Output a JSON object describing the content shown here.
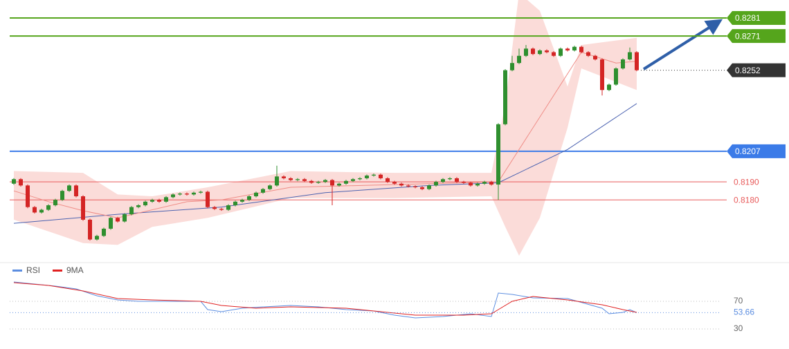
{
  "chart_data": [
    {
      "type": "candlestick",
      "up_color": "#2f8f2f",
      "down_color": "#d42525",
      "ylim": [
        0.8149,
        0.8291
      ],
      "candles": [
        [
          0.8189,
          0.81921,
          0.81884,
          0.81915
        ],
        [
          0.81915,
          0.81921,
          0.81874,
          0.8188
        ],
        [
          0.8188,
          0.81886,
          0.81754,
          0.8176
        ],
        [
          0.8176,
          0.81766,
          0.81724,
          0.8173
        ],
        [
          0.8173,
          0.81751,
          0.81724,
          0.81745
        ],
        [
          0.81745,
          0.81776,
          0.81739,
          0.8177
        ],
        [
          0.8177,
          0.81806,
          0.81764,
          0.818
        ],
        [
          0.818,
          0.81856,
          0.81794,
          0.8185
        ],
        [
          0.8185,
          0.81886,
          0.81844,
          0.8188
        ],
        [
          0.8188,
          0.81886,
          0.81814,
          0.8182
        ],
        [
          0.8182,
          0.81826,
          0.81684,
          0.8169
        ],
        [
          0.8169,
          0.81696,
          0.81574,
          0.8158
        ],
        [
          0.8158,
          0.81606,
          0.81574,
          0.816
        ],
        [
          0.816,
          0.81646,
          0.81594,
          0.8164
        ],
        [
          0.8164,
          0.81706,
          0.81634,
          0.817
        ],
        [
          0.817,
          0.81706,
          0.81674,
          0.8168
        ],
        [
          0.8168,
          0.81726,
          0.81674,
          0.8172
        ],
        [
          0.8172,
          0.81766,
          0.81714,
          0.8176
        ],
        [
          0.8176,
          0.81776,
          0.81754,
          0.8177
        ],
        [
          0.8177,
          0.81796,
          0.81764,
          0.8179
        ],
        [
          0.8179,
          0.81806,
          0.81784,
          0.818
        ],
        [
          0.818,
          0.81806,
          0.81784,
          0.8179
        ],
        [
          0.8179,
          0.81821,
          0.81784,
          0.81815
        ],
        [
          0.81815,
          0.81836,
          0.81809,
          0.8183
        ],
        [
          0.8183,
          0.81841,
          0.81824,
          0.81835
        ],
        [
          0.81835,
          0.81841,
          0.81824,
          0.8183
        ],
        [
          0.8183,
          0.81846,
          0.81824,
          0.8184
        ],
        [
          0.8184,
          0.81851,
          0.81834,
          0.81845
        ],
        [
          0.81845,
          0.81851,
          0.81754,
          0.8176
        ],
        [
          0.8176,
          0.81766,
          0.81744,
          0.8175
        ],
        [
          0.8175,
          0.81756,
          0.81739,
          0.81745
        ],
        [
          0.81745,
          0.81776,
          0.81739,
          0.8177
        ],
        [
          0.8177,
          0.81796,
          0.81764,
          0.8179
        ],
        [
          0.8179,
          0.81806,
          0.81784,
          0.818
        ],
        [
          0.818,
          0.81826,
          0.81794,
          0.8182
        ],
        [
          0.8182,
          0.81846,
          0.81814,
          0.8184
        ],
        [
          0.8184,
          0.81866,
          0.81834,
          0.8186
        ],
        [
          0.8186,
          0.81886,
          0.81854,
          0.8188
        ],
        [
          0.8188,
          0.8199,
          0.81874,
          0.8193
        ],
        [
          0.8193,
          0.81936,
          0.81914,
          0.8192
        ],
        [
          0.8192,
          0.81926,
          0.81904,
          0.8191
        ],
        [
          0.8191,
          0.81921,
          0.81904,
          0.81915
        ],
        [
          0.81915,
          0.81921,
          0.81899,
          0.81905
        ],
        [
          0.81905,
          0.81911,
          0.81889,
          0.81895
        ],
        [
          0.81895,
          0.81906,
          0.81889,
          0.819
        ],
        [
          0.819,
          0.81916,
          0.81894,
          0.8191
        ],
        [
          0.8191,
          0.81916,
          0.8177,
          0.8188
        ],
        [
          0.8188,
          0.81896,
          0.81874,
          0.8189
        ],
        [
          0.8189,
          0.81911,
          0.81884,
          0.81905
        ],
        [
          0.81905,
          0.81921,
          0.81899,
          0.81915
        ],
        [
          0.81915,
          0.81926,
          0.81909,
          0.8192
        ],
        [
          0.8192,
          0.81941,
          0.81914,
          0.81935
        ],
        [
          0.81935,
          0.81946,
          0.81929,
          0.8194
        ],
        [
          0.8194,
          0.81946,
          0.81914,
          0.8192
        ],
        [
          0.8192,
          0.81926,
          0.81894,
          0.819
        ],
        [
          0.819,
          0.81906,
          0.81884,
          0.8189
        ],
        [
          0.8189,
          0.81896,
          0.81874,
          0.8188
        ],
        [
          0.8188,
          0.81886,
          0.81869,
          0.81875
        ],
        [
          0.81875,
          0.81881,
          0.81864,
          0.8187
        ],
        [
          0.8187,
          0.81876,
          0.81854,
          0.8186
        ],
        [
          0.8186,
          0.81886,
          0.81854,
          0.8188
        ],
        [
          0.8188,
          0.81906,
          0.81874,
          0.819
        ],
        [
          0.819,
          0.81921,
          0.81894,
          0.81915
        ],
        [
          0.81915,
          0.81926,
          0.81909,
          0.8192
        ],
        [
          0.8192,
          0.81926,
          0.81894,
          0.819
        ],
        [
          0.819,
          0.81906,
          0.81889,
          0.81895
        ],
        [
          0.81895,
          0.81901,
          0.81874,
          0.8188
        ],
        [
          0.8188,
          0.81896,
          0.81874,
          0.8189
        ],
        [
          0.8189,
          0.81906,
          0.81884,
          0.819
        ],
        [
          0.819,
          0.81906,
          0.81879,
          0.81885
        ],
        [
          0.81885,
          0.82226,
          0.818,
          0.8222
        ],
        [
          0.8222,
          0.82526,
          0.82214,
          0.8252
        ],
        [
          0.8252,
          0.826,
          0.82514,
          0.8256
        ],
        [
          0.8256,
          0.8264,
          0.82554,
          0.826
        ],
        [
          0.826,
          0.8266,
          0.82594,
          0.8264
        ],
        [
          0.8264,
          0.82646,
          0.82604,
          0.8261
        ],
        [
          0.8261,
          0.82636,
          0.82604,
          0.8263
        ],
        [
          0.8263,
          0.82636,
          0.82614,
          0.8262
        ],
        [
          0.8262,
          0.82626,
          0.82594,
          0.826
        ],
        [
          0.826,
          0.82646,
          0.82594,
          0.8264
        ],
        [
          0.8264,
          0.82646,
          0.82624,
          0.8263
        ],
        [
          0.8263,
          0.82656,
          0.82624,
          0.8265
        ],
        [
          0.8265,
          0.82656,
          0.82614,
          0.8262
        ],
        [
          0.8262,
          0.82626,
          0.82594,
          0.826
        ],
        [
          0.826,
          0.82606,
          0.82574,
          0.8258
        ],
        [
          0.8258,
          0.82586,
          0.8238,
          0.8241
        ],
        [
          0.8241,
          0.82446,
          0.82404,
          0.8244
        ],
        [
          0.8244,
          0.82536,
          0.82434,
          0.8253
        ],
        [
          0.8253,
          0.82586,
          0.82524,
          0.8258
        ],
        [
          0.8258,
          0.82646,
          0.82574,
          0.8262
        ],
        [
          0.8262,
          0.82626,
          0.82514,
          0.8252
        ]
      ],
      "band": {
        "color": "#f9d0cc",
        "x": [
          0,
          10,
          15,
          20,
          28,
          40,
          55,
          69,
          71,
          73,
          76,
          80,
          82,
          90
        ],
        "upper": [
          0.8196,
          0.8195,
          0.8183,
          0.8182,
          0.8187,
          0.8196,
          0.8195,
          0.8195,
          0.8233,
          0.8295,
          0.8285,
          0.8243,
          0.8266,
          0.827
        ],
        "lower": [
          0.8169,
          0.8156,
          0.8155,
          0.8165,
          0.817,
          0.8181,
          0.8181,
          0.8182,
          0.8165,
          0.8149,
          0.817,
          0.822,
          0.8253,
          0.8241
        ]
      },
      "overlays": [
        {
          "color": "#4b62b0",
          "x": [
            0,
            15,
            30,
            45,
            60,
            70,
            80,
            90
          ],
          "values": [
            0.8167,
            0.8172,
            0.8176,
            0.8184,
            0.8188,
            0.81895,
            0.8208,
            0.82335
          ]
        },
        {
          "color": "#ef8c86",
          "x": [
            0,
            5,
            10,
            15,
            25,
            30,
            40,
            60,
            70,
            82,
            87,
            90
          ],
          "values": [
            0.8185,
            0.8179,
            0.8174,
            0.817,
            0.8179,
            0.818,
            0.8187,
            0.8189,
            0.819,
            0.8262,
            0.8256,
            0.8257
          ]
        }
      ],
      "levels": [
        {
          "value": 0.8281,
          "color": "#55a51c",
          "style": "box"
        },
        {
          "value": 0.8271,
          "color": "#55a51c",
          "style": "box"
        },
        {
          "value": 0.8207,
          "color": "#3b7be8",
          "style": "box"
        },
        {
          "value": 0.819,
          "label": "0.8190",
          "color": "#e85a5a",
          "style": "text"
        },
        {
          "value": 0.818,
          "label": "0.8180",
          "color": "#e85a5a",
          "style": "text"
        }
      ],
      "current_color": "#333333"
    },
    {
      "type": "line",
      "ylim": [
        20,
        110
      ],
      "yticks": [
        30,
        70
      ],
      "series": [
        {
          "name": "RSI",
          "color": "#5b8de0",
          "x": [
            0,
            3,
            6,
            9,
            12,
            15,
            18,
            27,
            28,
            30,
            33,
            36,
            40,
            44,
            48,
            52,
            55,
            58,
            62,
            66,
            69,
            70,
            72,
            75,
            80,
            85,
            86,
            88,
            89,
            90
          ],
          "values": [
            98,
            95,
            92,
            88,
            78,
            72,
            70,
            70,
            58,
            55,
            60,
            62,
            64,
            62,
            58,
            56,
            50,
            46,
            48,
            52,
            48,
            82,
            80,
            75,
            74,
            60,
            52,
            54,
            58,
            53.66
          ]
        },
        {
          "name": "9MA",
          "color": "#e02020",
          "x": [
            0,
            5,
            10,
            15,
            20,
            27,
            30,
            35,
            40,
            48,
            55,
            58,
            65,
            69,
            70,
            72,
            75,
            80,
            85,
            88,
            90
          ],
          "values": [
            97,
            93,
            85,
            74,
            72,
            70,
            64,
            60,
            62,
            60,
            53,
            50,
            50,
            52,
            58,
            70,
            77,
            72,
            65,
            58,
            54
          ]
        }
      ]
    }
  ]
}
